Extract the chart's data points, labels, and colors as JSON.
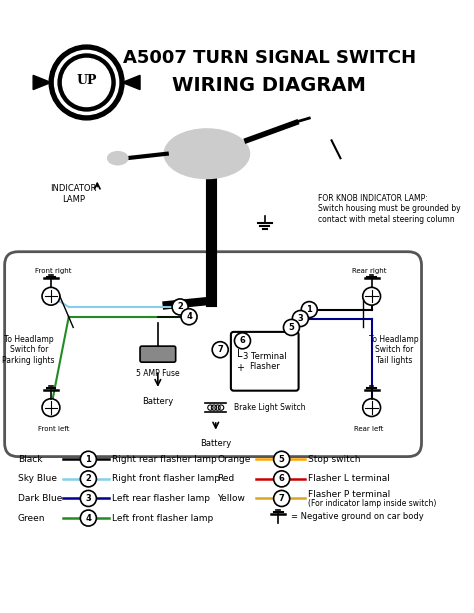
{
  "title1": "A5007 TURN SIGNAL SWITCH",
  "title2": "WIRING DIAGRAM",
  "bg_color": "#ffffff",
  "legend_left": [
    {
      "color": "black",
      "num": "1",
      "label": "Right rear flasher lamp"
    },
    {
      "color": "#87CEEB",
      "num": "2",
      "label": "Right front flasher lamp"
    },
    {
      "color": "#00008B",
      "num": "3",
      "label": "Left rear flasher lamp"
    },
    {
      "color": "#228B22",
      "num": "4",
      "label": "Left front flasher lamp"
    }
  ],
  "legend_right": [
    {
      "color": "#FFA500",
      "num": "5",
      "label": "Stop switch"
    },
    {
      "color": "#CC0000",
      "num": "6",
      "label": "Flasher L terminal"
    },
    {
      "color": "#DAA520",
      "num": "7",
      "label": "Flasher P terminal\n(For indicator lamp inside switch)"
    }
  ],
  "ground_label": "= Negative ground on car body",
  "knob_note": "FOR KNOB INDICATOR LAMP:\nSwitch housing must be grounded by\ncontact with metal steering column",
  "indicator_lamp_label": "INDICATOR\nLAMP",
  "labels": {
    "front_right": "Front right",
    "rear_right": "Rear right",
    "front_left": "Front left",
    "rear_left": "Rear left",
    "parking": "To Headlamp\nSwitch for\nParking lights",
    "tail": "To Headlamp\nSwitch for\nTail lights",
    "fuse": "5 AMP Fuse",
    "battery1": "Battery",
    "battery2": "Battery",
    "flasher": "3 Terminal\nFlaher",
    "brake": "Brake Light Switch"
  }
}
